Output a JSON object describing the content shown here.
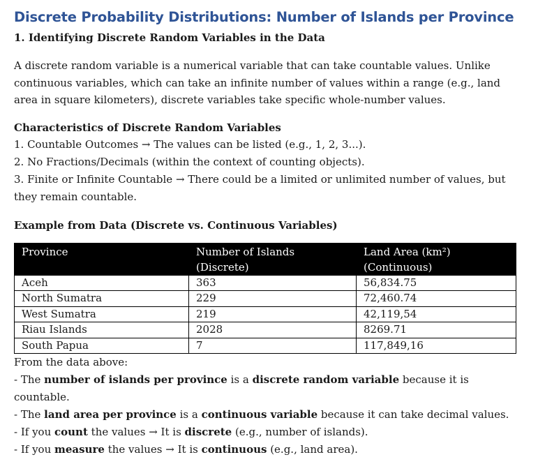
{
  "doc": {
    "title": "Discrete Probability Distributions: Number of Islands per Province",
    "section_heading": "1. Identifying Discrete Random Variables in the Data",
    "intro": "A discrete random variable is a numerical variable that can take countable values. Unlike continuous variables, which can take an infinite number of values within a range (e.g., land area in square kilometers), discrete variables take specific whole-number values.",
    "characteristics_heading": "Characteristics of Discrete Random Variables",
    "characteristics": [
      "1. Countable Outcomes → The values can be listed (e.g., 1, 2, 3...).",
      "2. No Fractions/Decimals (within the context of counting objects).",
      "3. Finite or Infinite Countable → There could be a limited or unlimited number of values, but they remain countable."
    ],
    "example_heading": "Example from Data (Discrete vs. Continuous Variables)",
    "table": {
      "headers": [
        "Province",
        "Number of Islands (Discrete)",
        "Land Area (km²) (Continuous)"
      ],
      "rows": [
        [
          "Aceh",
          "363",
          "56,834.75"
        ],
        [
          "North Sumatra",
          "229",
          "72,460.74"
        ],
        [
          "West Sumatra",
          "219",
          "42,119,54"
        ],
        [
          "Riau Islands",
          "2028",
          "8269.71"
        ],
        [
          "South Papua",
          "7",
          "117,849,16"
        ]
      ]
    },
    "from_data": "From the data above:",
    "notes": [
      {
        "pre": "- The ",
        "b1": "number of islands per province",
        "mid": " is a ",
        "b2": "discrete random variable",
        "post": " because it is countable."
      },
      {
        "pre": "- The ",
        "b1": "land area per province",
        "mid": " is a ",
        "b2": "continuous variable",
        "post": " because it can take decimal values."
      },
      {
        "pre": "- If you ",
        "b1": "count",
        "mid": " the values → It is ",
        "b2": "discrete",
        "post": " (e.g., number of islands)."
      },
      {
        "pre": "- If you ",
        "b1": "measure",
        "mid": " the values → It is ",
        "b2": "continuous",
        "post": " (e.g., land area)."
      }
    ]
  }
}
